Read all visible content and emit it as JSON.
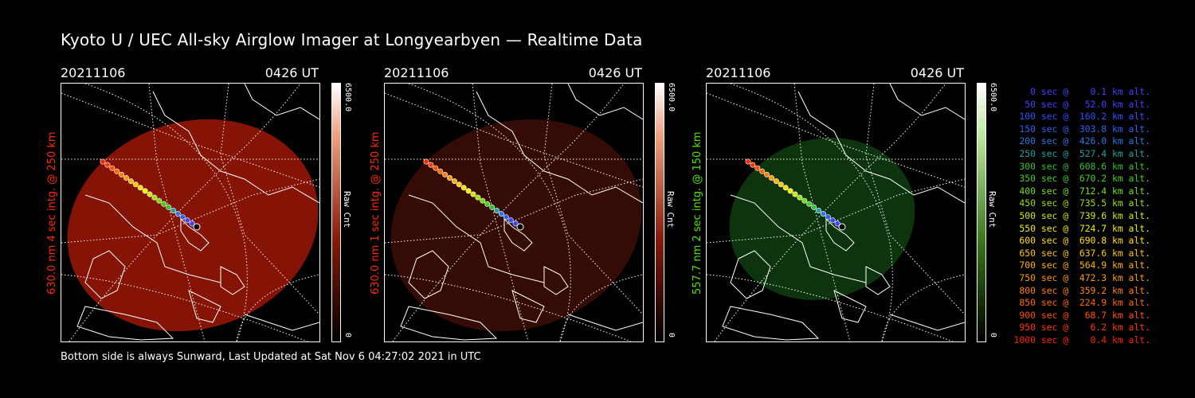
{
  "title": "Kyoto U / UEC All-sky Airglow Imager at Longyearbyen — Realtime Data",
  "footer": "Bottom side is always Sunward, Last Updated at Sat Nov  6 04:27:02 2021 in UTC",
  "panels": [
    {
      "date": "20211106",
      "time": "0426 UT",
      "side_label": "630.0 nm 4 sec intg. @ 250 km",
      "color": "#ff2a00",
      "fill": "#9c1808",
      "fill_opacity": 0.85,
      "cbar_max": "6500.0",
      "cbar_unit": "Raw Cnt",
      "cbar_min": "0"
    },
    {
      "date": "20211106",
      "time": "0426 UT",
      "side_label": "630.0 nm 1 sec intg. @ 250 km",
      "color": "#ff2a00",
      "fill": "#3a0d06",
      "fill_opacity": 0.9,
      "cbar_max": "6500.0",
      "cbar_unit": "Raw Cnt",
      "cbar_min": "0"
    },
    {
      "date": "20211106",
      "time": "0426 UT",
      "side_label": "557.7 nm 2 sec intg. @ 150 km",
      "color": "#4ce600",
      "fill": "#0f3a0f",
      "fill_opacity": 0.9,
      "cbar_max": "6500.0",
      "cbar_unit": "Raw Cnt",
      "cbar_min": "0"
    }
  ],
  "legend": [
    {
      "text": "   0 sec @    0.1 km alt.",
      "color": "#4040ff"
    },
    {
      "text": "  50 sec @   52.0 km alt.",
      "color": "#4040ff"
    },
    {
      "text": " 100 sec @  160.2 km alt.",
      "color": "#3050ff"
    },
    {
      "text": " 150 sec @  303.8 km alt.",
      "color": "#3060f0"
    },
    {
      "text": " 200 sec @  426.0 km alt.",
      "color": "#2878e0"
    },
    {
      "text": " 250 sec @  527.4 km alt.",
      "color": "#20a0a0"
    },
    {
      "text": " 300 sec @  608.6 km alt.",
      "color": "#30c030"
    },
    {
      "text": " 350 sec @  670.2 km alt.",
      "color": "#40d020"
    },
    {
      "text": " 400 sec @  712.4 km alt.",
      "color": "#70e010"
    },
    {
      "text": " 450 sec @  735.5 km alt.",
      "color": "#a0e000"
    },
    {
      "text": " 500 sec @  739.6 km alt.",
      "color": "#d0e800"
    },
    {
      "text": " 550 sec @  724.7 km alt.",
      "color": "#f0f000"
    },
    {
      "text": " 600 sec @  690.8 km alt.",
      "color": "#ffe000"
    },
    {
      "text": " 650 sec @  637.6 km alt.",
      "color": "#ffc800"
    },
    {
      "text": " 700 sec @  564.9 km alt.",
      "color": "#ffb000"
    },
    {
      "text": " 750 sec @  472.3 km alt.",
      "color": "#ff9800"
    },
    {
      "text": " 800 sec @  359.2 km alt.",
      "color": "#ff8000"
    },
    {
      "text": " 850 sec @  224.9 km alt.",
      "color": "#ff6800"
    },
    {
      "text": " 900 sec @   68.7 km alt.",
      "color": "#ff5000"
    },
    {
      "text": " 950 sec @    6.2 km alt.",
      "color": "#ff3800"
    },
    {
      "text": "1000 sec @    0.4 km alt.",
      "color": "#ff2000"
    }
  ]
}
